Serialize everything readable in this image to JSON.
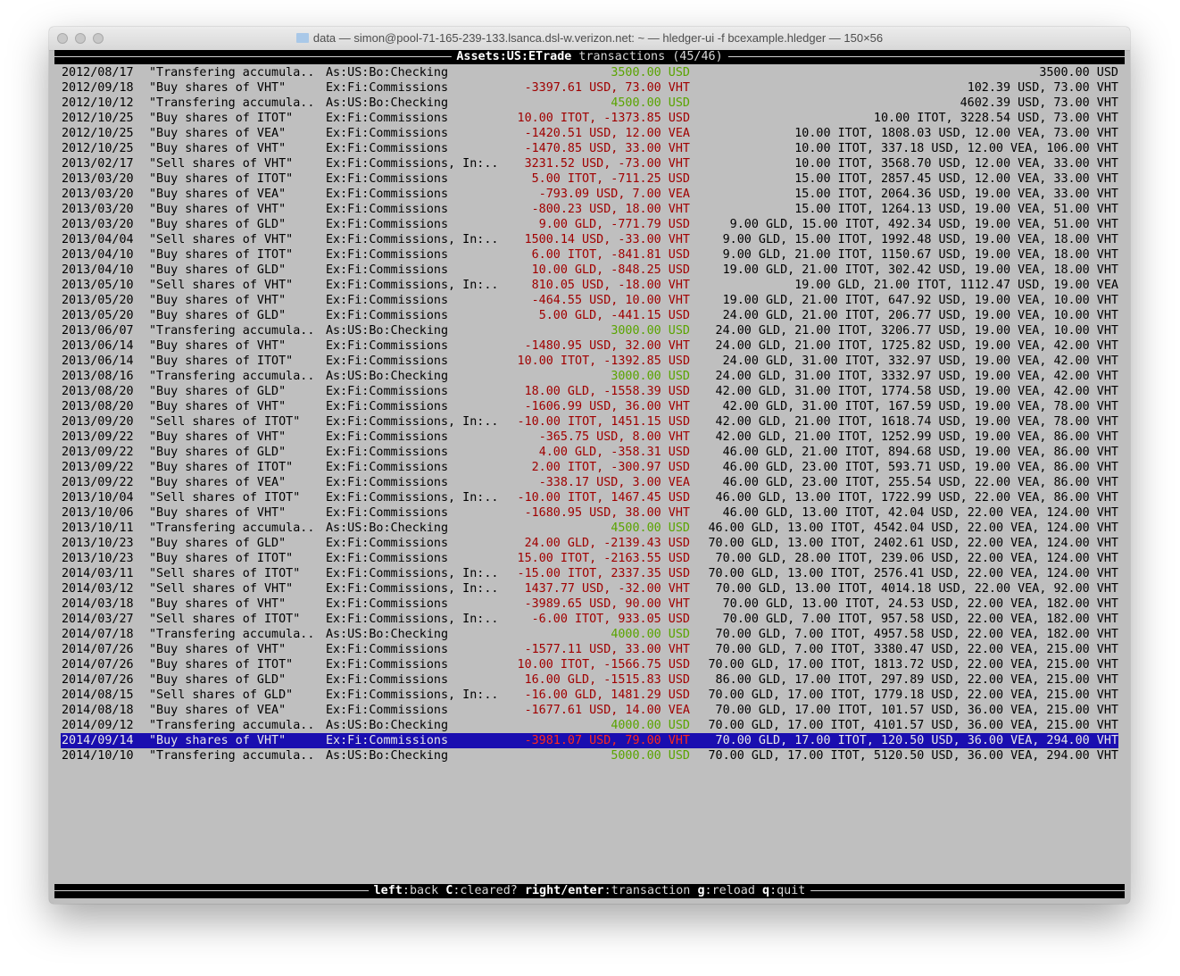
{
  "window": {
    "title": "data — simon@pool-71-165-239-133.lsanca.dsl-w.verizon.net: ~ — hledger-ui -f bcexample.hledger — 150×56",
    "folder_icon": "folder-icon"
  },
  "header": {
    "account": "Assets:US:ETrade",
    "suffix": " transactions (45/46)"
  },
  "colors": {
    "increase": "#5aa400",
    "decrease": "#a00000",
    "selected_bg": "#1a0eb0",
    "selected_decrease": "#ff2a1a"
  },
  "selected_index": 44,
  "rows": [
    [
      "2012/08/17",
      "\"Transfering accumula..",
      "As:US:Bo:Checking",
      "3500.00 USD",
      "3500.00 USD"
    ],
    [
      "2012/09/18",
      "\"Buy shares of VHT\"",
      "Ex:Fi:Commissions",
      "-3397.61 USD, 73.00 VHT",
      "102.39 USD, 73.00 VHT"
    ],
    [
      "2012/10/12",
      "\"Transfering accumula..",
      "As:US:Bo:Checking",
      "4500.00 USD",
      "4602.39 USD, 73.00 VHT"
    ],
    [
      "2012/10/25",
      "\"Buy shares of ITOT\"",
      "Ex:Fi:Commissions",
      "10.00 ITOT, -1373.85 USD",
      "10.00 ITOT, 3228.54 USD, 73.00 VHT"
    ],
    [
      "2012/10/25",
      "\"Buy shares of VEA\"",
      "Ex:Fi:Commissions",
      "-1420.51 USD, 12.00 VEA",
      "10.00 ITOT, 1808.03 USD, 12.00 VEA, 73.00 VHT"
    ],
    [
      "2012/10/25",
      "\"Buy shares of VHT\"",
      "Ex:Fi:Commissions",
      "-1470.85 USD, 33.00 VHT",
      "10.00 ITOT, 337.18 USD, 12.00 VEA, 106.00 VHT"
    ],
    [
      "2013/02/17",
      "\"Sell shares of VHT\"",
      "Ex:Fi:Commissions, In:..",
      "3231.52 USD, -73.00 VHT",
      "10.00 ITOT, 3568.70 USD, 12.00 VEA, 33.00 VHT"
    ],
    [
      "2013/03/20",
      "\"Buy shares of ITOT\"",
      "Ex:Fi:Commissions",
      "5.00 ITOT, -711.25 USD",
      "15.00 ITOT, 2857.45 USD, 12.00 VEA, 33.00 VHT"
    ],
    [
      "2013/03/20",
      "\"Buy shares of VEA\"",
      "Ex:Fi:Commissions",
      "-793.09 USD, 7.00 VEA",
      "15.00 ITOT, 2064.36 USD, 19.00 VEA, 33.00 VHT"
    ],
    [
      "2013/03/20",
      "\"Buy shares of VHT\"",
      "Ex:Fi:Commissions",
      "-800.23 USD, 18.00 VHT",
      "15.00 ITOT, 1264.13 USD, 19.00 VEA, 51.00 VHT"
    ],
    [
      "2013/03/20",
      "\"Buy shares of GLD\"",
      "Ex:Fi:Commissions",
      "9.00 GLD, -771.79 USD",
      "9.00 GLD, 15.00 ITOT, 492.34 USD, 19.00 VEA, 51.00 VHT"
    ],
    [
      "2013/04/04",
      "\"Sell shares of VHT\"",
      "Ex:Fi:Commissions, In:..",
      "1500.14 USD, -33.00 VHT",
      "9.00 GLD, 15.00 ITOT, 1992.48 USD, 19.00 VEA, 18.00 VHT"
    ],
    [
      "2013/04/10",
      "\"Buy shares of ITOT\"",
      "Ex:Fi:Commissions",
      "6.00 ITOT, -841.81 USD",
      "9.00 GLD, 21.00 ITOT, 1150.67 USD, 19.00 VEA, 18.00 VHT"
    ],
    [
      "2013/04/10",
      "\"Buy shares of GLD\"",
      "Ex:Fi:Commissions",
      "10.00 GLD, -848.25 USD",
      "19.00 GLD, 21.00 ITOT, 302.42 USD, 19.00 VEA, 18.00 VHT"
    ],
    [
      "2013/05/10",
      "\"Sell shares of VHT\"",
      "Ex:Fi:Commissions, In:..",
      "810.05 USD, -18.00 VHT",
      "19.00 GLD, 21.00 ITOT, 1112.47 USD, 19.00 VEA"
    ],
    [
      "2013/05/20",
      "\"Buy shares of VHT\"",
      "Ex:Fi:Commissions",
      "-464.55 USD, 10.00 VHT",
      "19.00 GLD, 21.00 ITOT, 647.92 USD, 19.00 VEA, 10.00 VHT"
    ],
    [
      "2013/05/20",
      "\"Buy shares of GLD\"",
      "Ex:Fi:Commissions",
      "5.00 GLD, -441.15 USD",
      "24.00 GLD, 21.00 ITOT, 206.77 USD, 19.00 VEA, 10.00 VHT"
    ],
    [
      "2013/06/07",
      "\"Transfering accumula..",
      "As:US:Bo:Checking",
      "3000.00 USD",
      "24.00 GLD, 21.00 ITOT, 3206.77 USD, 19.00 VEA, 10.00 VHT"
    ],
    [
      "2013/06/14",
      "\"Buy shares of VHT\"",
      "Ex:Fi:Commissions",
      "-1480.95 USD, 32.00 VHT",
      "24.00 GLD, 21.00 ITOT, 1725.82 USD, 19.00 VEA, 42.00 VHT"
    ],
    [
      "2013/06/14",
      "\"Buy shares of ITOT\"",
      "Ex:Fi:Commissions",
      "10.00 ITOT, -1392.85 USD",
      "24.00 GLD, 31.00 ITOT, 332.97 USD, 19.00 VEA, 42.00 VHT"
    ],
    [
      "2013/08/16",
      "\"Transfering accumula..",
      "As:US:Bo:Checking",
      "3000.00 USD",
      "24.00 GLD, 31.00 ITOT, 3332.97 USD, 19.00 VEA, 42.00 VHT"
    ],
    [
      "2013/08/20",
      "\"Buy shares of GLD\"",
      "Ex:Fi:Commissions",
      "18.00 GLD, -1558.39 USD",
      "42.00 GLD, 31.00 ITOT, 1774.58 USD, 19.00 VEA, 42.00 VHT"
    ],
    [
      "2013/08/20",
      "\"Buy shares of VHT\"",
      "Ex:Fi:Commissions",
      "-1606.99 USD, 36.00 VHT",
      "42.00 GLD, 31.00 ITOT, 167.59 USD, 19.00 VEA, 78.00 VHT"
    ],
    [
      "2013/09/20",
      "\"Sell shares of ITOT\"",
      "Ex:Fi:Commissions, In:..",
      "-10.00 ITOT, 1451.15 USD",
      "42.00 GLD, 21.00 ITOT, 1618.74 USD, 19.00 VEA, 78.00 VHT"
    ],
    [
      "2013/09/22",
      "\"Buy shares of VHT\"",
      "Ex:Fi:Commissions",
      "-365.75 USD, 8.00 VHT",
      "42.00 GLD, 21.00 ITOT, 1252.99 USD, 19.00 VEA, 86.00 VHT"
    ],
    [
      "2013/09/22",
      "\"Buy shares of GLD\"",
      "Ex:Fi:Commissions",
      "4.00 GLD, -358.31 USD",
      "46.00 GLD, 21.00 ITOT, 894.68 USD, 19.00 VEA, 86.00 VHT"
    ],
    [
      "2013/09/22",
      "\"Buy shares of ITOT\"",
      "Ex:Fi:Commissions",
      "2.00 ITOT, -300.97 USD",
      "46.00 GLD, 23.00 ITOT, 593.71 USD, 19.00 VEA, 86.00 VHT"
    ],
    [
      "2013/09/22",
      "\"Buy shares of VEA\"",
      "Ex:Fi:Commissions",
      "-338.17 USD, 3.00 VEA",
      "46.00 GLD, 23.00 ITOT, 255.54 USD, 22.00 VEA, 86.00 VHT"
    ],
    [
      "2013/10/04",
      "\"Sell shares of ITOT\"",
      "Ex:Fi:Commissions, In:..",
      "-10.00 ITOT, 1467.45 USD",
      "46.00 GLD, 13.00 ITOT, 1722.99 USD, 22.00 VEA, 86.00 VHT"
    ],
    [
      "2013/10/06",
      "\"Buy shares of VHT\"",
      "Ex:Fi:Commissions",
      "-1680.95 USD, 38.00 VHT",
      "46.00 GLD, 13.00 ITOT, 42.04 USD, 22.00 VEA, 124.00 VHT"
    ],
    [
      "2013/10/11",
      "\"Transfering accumula..",
      "As:US:Bo:Checking",
      "4500.00 USD",
      "46.00 GLD, 13.00 ITOT, 4542.04 USD, 22.00 VEA, 124.00 VHT"
    ],
    [
      "2013/10/23",
      "\"Buy shares of GLD\"",
      "Ex:Fi:Commissions",
      "24.00 GLD, -2139.43 USD",
      "70.00 GLD, 13.00 ITOT, 2402.61 USD, 22.00 VEA, 124.00 VHT"
    ],
    [
      "2013/10/23",
      "\"Buy shares of ITOT\"",
      "Ex:Fi:Commissions",
      "15.00 ITOT, -2163.55 USD",
      "70.00 GLD, 28.00 ITOT, 239.06 USD, 22.00 VEA, 124.00 VHT"
    ],
    [
      "2014/03/11",
      "\"Sell shares of ITOT\"",
      "Ex:Fi:Commissions, In:..",
      "-15.00 ITOT, 2337.35 USD",
      "70.00 GLD, 13.00 ITOT, 2576.41 USD, 22.00 VEA, 124.00 VHT"
    ],
    [
      "2014/03/12",
      "\"Sell shares of VHT\"",
      "Ex:Fi:Commissions, In:..",
      "1437.77 USD, -32.00 VHT",
      "70.00 GLD, 13.00 ITOT, 4014.18 USD, 22.00 VEA, 92.00 VHT"
    ],
    [
      "2014/03/18",
      "\"Buy shares of VHT\"",
      "Ex:Fi:Commissions",
      "-3989.65 USD, 90.00 VHT",
      "70.00 GLD, 13.00 ITOT, 24.53 USD, 22.00 VEA, 182.00 VHT"
    ],
    [
      "2014/03/27",
      "\"Sell shares of ITOT\"",
      "Ex:Fi:Commissions, In:..",
      "-6.00 ITOT, 933.05 USD",
      "70.00 GLD, 7.00 ITOT, 957.58 USD, 22.00 VEA, 182.00 VHT"
    ],
    [
      "2014/07/18",
      "\"Transfering accumula..",
      "As:US:Bo:Checking",
      "4000.00 USD",
      "70.00 GLD, 7.00 ITOT, 4957.58 USD, 22.00 VEA, 182.00 VHT"
    ],
    [
      "2014/07/26",
      "\"Buy shares of VHT\"",
      "Ex:Fi:Commissions",
      "-1577.11 USD, 33.00 VHT",
      "70.00 GLD, 7.00 ITOT, 3380.47 USD, 22.00 VEA, 215.00 VHT"
    ],
    [
      "2014/07/26",
      "\"Buy shares of ITOT\"",
      "Ex:Fi:Commissions",
      "10.00 ITOT, -1566.75 USD",
      "70.00 GLD, 17.00 ITOT, 1813.72 USD, 22.00 VEA, 215.00 VHT"
    ],
    [
      "2014/07/26",
      "\"Buy shares of GLD\"",
      "Ex:Fi:Commissions",
      "16.00 GLD, -1515.83 USD",
      "86.00 GLD, 17.00 ITOT, 297.89 USD, 22.00 VEA, 215.00 VHT"
    ],
    [
      "2014/08/15",
      "\"Sell shares of GLD\"",
      "Ex:Fi:Commissions, In:..",
      "-16.00 GLD, 1481.29 USD",
      "70.00 GLD, 17.00 ITOT, 1779.18 USD, 22.00 VEA, 215.00 VHT"
    ],
    [
      "2014/08/18",
      "\"Buy shares of VEA\"",
      "Ex:Fi:Commissions",
      "-1677.61 USD, 14.00 VEA",
      "70.00 GLD, 17.00 ITOT, 101.57 USD, 36.00 VEA, 215.00 VHT"
    ],
    [
      "2014/09/12",
      "\"Transfering accumula..",
      "As:US:Bo:Checking",
      "4000.00 USD",
      "70.00 GLD, 17.00 ITOT, 4101.57 USD, 36.00 VEA, 215.00 VHT"
    ],
    [
      "2014/09/14",
      "\"Buy shares of VHT\"",
      "Ex:Fi:Commissions",
      "-3981.07 USD, 79.00 VHT",
      "70.00 GLD, 17.00 ITOT, 120.50 USD, 36.00 VEA, 294.00 VHT"
    ],
    [
      "2014/10/10",
      "\"Transfering accumula..",
      "As:US:Bo:Checking",
      "5000.00 USD",
      "70.00 GLD, 17.00 ITOT, 5120.50 USD, 36.00 VEA, 294.00 VHT"
    ]
  ],
  "footer": {
    "keys": [
      {
        "key": "left",
        "action": "back"
      },
      {
        "key": "C",
        "action": "cleared?"
      },
      {
        "key": "right/enter",
        "action": "transaction"
      },
      {
        "key": "g",
        "action": "reload"
      },
      {
        "key": "q",
        "action": "quit"
      }
    ]
  }
}
